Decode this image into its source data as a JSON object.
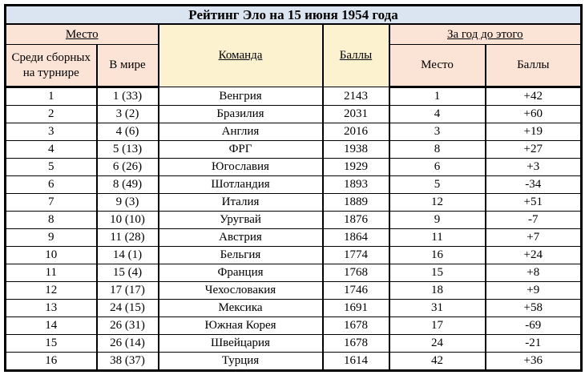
{
  "title": "Рейтинг Эло на 15 июня 1954 года",
  "columns": {
    "place_group": "Место",
    "place_tournament": "Среди сборных на турнире",
    "place_world": "В мире",
    "team": "Команда",
    "points": "Баллы",
    "prev_group": "За год до этого",
    "prev_place": "Место",
    "prev_points": "Баллы"
  },
  "colors": {
    "title_bg": "#dbe5f1",
    "group_bg": "#fbe4d5",
    "team_bg": "#fdf2d0",
    "border": "#000000"
  },
  "rows": [
    {
      "place": "1",
      "world": "1 (33)",
      "team": "Венгрия",
      "bold": true,
      "points": "2143",
      "prev_place": "1",
      "prev_points": "+42"
    },
    {
      "place": "2",
      "world": "3 (2)",
      "team": "Бразилия",
      "bold": true,
      "points": "2031",
      "prev_place": "4",
      "prev_points": "+60"
    },
    {
      "place": "3",
      "world": "4 (6)",
      "team": "Англия",
      "bold": true,
      "points": "2016",
      "prev_place": "3",
      "prev_points": "+19"
    },
    {
      "place": "4",
      "world": "5 (13)",
      "team": "ФРГ",
      "bold": false,
      "points": "1938",
      "prev_place": "8",
      "prev_points": "+27"
    },
    {
      "place": "5",
      "world": "6 (26)",
      "team": "Югославия",
      "bold": false,
      "points": "1929",
      "prev_place": "6",
      "prev_points": "+3"
    },
    {
      "place": "6",
      "world": "8 (49)",
      "team": "Шотландия",
      "bold": false,
      "points": "1893",
      "prev_place": "5",
      "prev_points": "-34"
    },
    {
      "place": "7",
      "world": "9 (3)",
      "team": "Италия",
      "bold": true,
      "points": "1889",
      "prev_place": "12",
      "prev_points": "+51"
    },
    {
      "place": "8",
      "world": "10 (10)",
      "team": "Уругвай",
      "bold": true,
      "points": "1876",
      "prev_place": "9",
      "prev_points": "-7"
    },
    {
      "place": "9",
      "world": "11 (28)",
      "team": "Австрия",
      "bold": true,
      "points": "1864",
      "prev_place": "11",
      "prev_points": "+7"
    },
    {
      "place": "10",
      "world": "14 (1)",
      "team": "Бельгия",
      "bold": false,
      "points": "1774",
      "prev_place": "16",
      "prev_points": "+24"
    },
    {
      "place": "11",
      "world": "15 (4)",
      "team": "Франция",
      "bold": true,
      "points": "1768",
      "prev_place": "15",
      "prev_points": "+8"
    },
    {
      "place": "12",
      "world": "17 (17)",
      "team": "Чехословакия",
      "bold": false,
      "points": "1746",
      "prev_place": "18",
      "prev_points": "+9"
    },
    {
      "place": "13",
      "world": "24 (15)",
      "team": "Мексика",
      "bold": false,
      "points": "1691",
      "prev_place": "31",
      "prev_points": "+58"
    },
    {
      "place": "14",
      "world": "26 (31)",
      "team": "Южная Корея",
      "bold": false,
      "points": "1678",
      "prev_place": "17",
      "prev_points": "-69"
    },
    {
      "place": "15",
      "world": "26 (14)",
      "team": "Швейцария",
      "bold": false,
      "points": "1678",
      "prev_place": "24",
      "prev_points": "-21"
    },
    {
      "place": "16",
      "world": "38 (37)",
      "team": "Турция",
      "bold": true,
      "points": "1614",
      "prev_place": "42",
      "prev_points": "+36"
    }
  ]
}
